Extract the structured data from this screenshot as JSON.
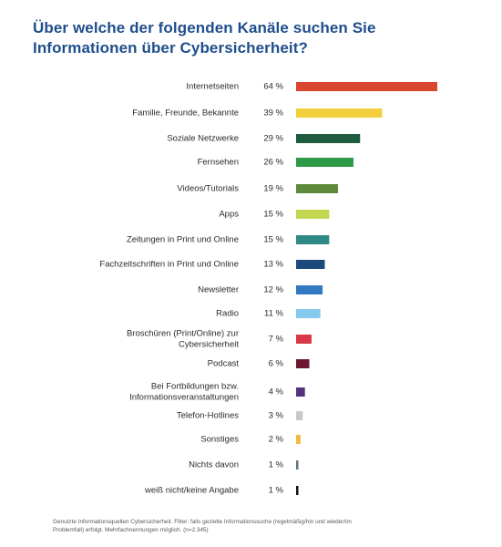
{
  "title": "Über welche der folgenden Kanäle suchen Sie Informationen über Cybersicherheit?",
  "footnote": "Genutzte Informationsquellen Cybersicherheit. Filter: falls gezielte Informationssuche (regelmäßig/hin und wieder/im Problemfall) erfolgt. Mehrfachnennungen möglich. (n=2.345)",
  "chart_data": {
    "type": "bar",
    "orientation": "horizontal",
    "unit": "%",
    "categories": [
      "Internetseiten",
      "Familie, Freunde, Bekannte",
      "Soziale Netzwerke",
      "Fernsehen",
      "Videos/Tutorials",
      "Apps",
      "Zeitungen in Print und Online",
      "Fachzeitschriften in Print und Online",
      "Newsletter",
      "Radio",
      "Broschüren (Print/Online) zur Cybersicherheit",
      "Podcast",
      "Bei Fortbildungen bzw. Informationsveranstaltungen",
      "Telefon-Hotlines",
      "Sonstiges",
      "Nichts davon",
      "weiß nicht/keine Angabe"
    ],
    "label_lines": [
      [
        "Internetseiten"
      ],
      [
        "Familie, Freunde, Bekannte"
      ],
      [
        "Soziale Netzwerke"
      ],
      [
        "Fernsehen"
      ],
      [
        "Videos/Tutorials"
      ],
      [
        "Apps"
      ],
      [
        "Zeitungen in Print und Online"
      ],
      [
        "Fachzeitschriften in Print und Online"
      ],
      [
        "Newsletter"
      ],
      [
        "Radio"
      ],
      [
        "Broschüren (Print/Online) zur",
        "Cybersicherheit"
      ],
      [
        "Podcast"
      ],
      [
        "Bei Fortbildungen bzw.",
        "Informationsveranstaltungen"
      ],
      [
        "Telefon-Hotlines"
      ],
      [
        "Sonstiges"
      ],
      [
        "Nichts davon"
      ],
      [
        "weiß nicht/keine Angabe"
      ]
    ],
    "values": [
      64,
      39,
      29,
      26,
      19,
      15,
      15,
      13,
      12,
      11,
      7,
      6,
      4,
      3,
      2,
      1,
      1
    ],
    "value_labels": [
      "64 %",
      "39 %",
      "29 %",
      "26 %",
      "19 %",
      "15 %",
      "15 %",
      "13 %",
      "12 %",
      "11 %",
      "7 %",
      "6 %",
      "4 %",
      "3 %",
      "2 %",
      "1 %",
      "1 %"
    ],
    "colors": [
      "#d9462f",
      "#f2cf3d",
      "#1f5b3f",
      "#2e9a47",
      "#5e8a3c",
      "#c5d650",
      "#2f8a86",
      "#1c4a7c",
      "#3279c1",
      "#86c9ef",
      "#d93848",
      "#6b1830",
      "#55327d",
      "#c8c9cc",
      "#f2b83a",
      "#5d7382",
      "#111111"
    ],
    "xlim": [
      0,
      64
    ]
  }
}
